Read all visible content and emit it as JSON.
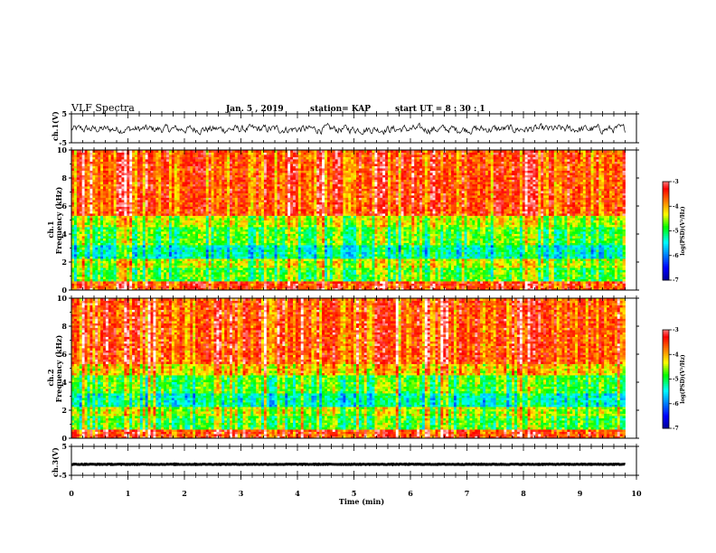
{
  "header": {
    "title": "VLF Spectra",
    "date": "Jan. 5 , 2019",
    "station": "station= KAP",
    "start": "start  UT =   8 : 30 : 1"
  },
  "chart_data": [
    {
      "type": "line",
      "panel": "ch1-waveform",
      "ylabel": "ch.1(V)",
      "ylim": [
        -5,
        5
      ],
      "yticks": [
        "5",
        "-5"
      ],
      "xlim": [
        0,
        10
      ],
      "trace_color": "#000000"
    },
    {
      "type": "heatmap",
      "panel": "ch1-spectrogram",
      "ylabel": "ch.1\nFrequency  (kHz)",
      "ylim": [
        0,
        10
      ],
      "yticks": [
        "0",
        "2",
        "4",
        "6",
        "8",
        "10"
      ],
      "xlim": [
        0,
        9.8
      ],
      "colorbar": {
        "label": "log(PSD)(V²/Hz)",
        "range": [
          -7,
          -3
        ],
        "ticks": [
          "-3",
          "-4",
          "-5",
          "-6",
          "-7"
        ]
      }
    },
    {
      "type": "heatmap",
      "panel": "ch2-spectrogram",
      "ylabel": "ch.2\nFrequency  (kHz)",
      "ylim": [
        0,
        10
      ],
      "yticks": [
        "0",
        "2",
        "4",
        "6",
        "8",
        "10"
      ],
      "xlim": [
        0,
        9.8
      ],
      "colorbar": {
        "label": "log(PSD)(V²/Hz)",
        "range": [
          -7,
          -3
        ],
        "ticks": [
          "-3",
          "-4",
          "-5",
          "-6",
          "-7"
        ]
      }
    },
    {
      "type": "line",
      "panel": "ch3-waveform",
      "ylabel": "ch.3(V)",
      "ylim": [
        -5,
        5
      ],
      "yticks": [
        "5",
        "-5"
      ],
      "xlim": [
        0,
        10
      ],
      "trace_color": "#000000"
    }
  ],
  "x_axis": {
    "label": "Time  (min)",
    "ticks": [
      "0",
      "1",
      "2",
      "3",
      "4",
      "5",
      "6",
      "7",
      "8",
      "9",
      "10"
    ],
    "range": [
      0,
      10
    ]
  }
}
